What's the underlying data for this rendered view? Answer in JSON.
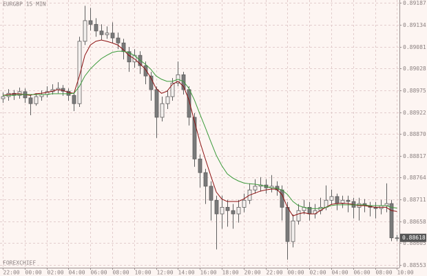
{
  "chart_data": {
    "type": "candlestick",
    "title": "EURGBP 15 MIN",
    "watermark": "FOREXCHIEF",
    "categories": [
      "22:00",
      null,
      null,
      null,
      "00:00",
      null,
      null,
      null,
      "02:00",
      null,
      null,
      null,
      "04:00",
      null,
      null,
      null,
      "06:00",
      null,
      null,
      null,
      "08:00",
      null,
      null,
      null,
      "10:00",
      null,
      null,
      null,
      "12:00",
      null,
      null,
      null,
      "14:00",
      null,
      null,
      null,
      "16:00",
      null,
      null,
      null,
      "18:00",
      null,
      null,
      null,
      "20:00",
      null,
      null,
      null,
      "22:00",
      null,
      null,
      null,
      "00:00",
      null,
      null,
      null,
      "02:00",
      null,
      null,
      null,
      "04:00",
      null,
      null,
      null,
      "06:00",
      null,
      null,
      null,
      "08:00",
      null,
      null,
      null,
      "10:00"
    ],
    "open": [
      0.88955,
      0.8896,
      0.88968,
      0.88963,
      0.88972,
      0.88957,
      0.88943,
      0.8896,
      0.88965,
      0.88972,
      0.88977,
      0.8898,
      0.88973,
      0.88963,
      0.88943,
      0.89094,
      0.89144,
      0.89135,
      0.89119,
      0.8911,
      0.89114,
      0.89102,
      0.8909,
      0.89069,
      0.89044,
      0.8906,
      0.89035,
      0.8901,
      0.88977,
      0.8891,
      0.88943,
      0.8896,
      0.88993,
      0.89013,
      0.88977,
      0.8891,
      0.88809,
      0.88776,
      0.88743,
      0.88709,
      0.88676,
      0.88692,
      0.88684,
      0.88676,
      0.88692,
      0.88709,
      0.88734,
      0.88743,
      0.88746,
      0.88739,
      0.88743,
      0.88734,
      0.88692,
      0.88609,
      0.88659,
      0.88684,
      0.88692,
      0.88676,
      0.88684,
      0.88692,
      0.88709,
      0.88718,
      0.88701,
      0.88709,
      0.88706,
      0.88692,
      0.88701,
      0.88696,
      0.88692,
      0.88689,
      0.88696,
      0.88701,
      0.88618
    ],
    "high": [
      0.8897,
      0.88978,
      0.88976,
      0.88982,
      0.8898,
      0.88965,
      0.88968,
      0.88975,
      0.88985,
      0.8899,
      0.88995,
      0.88988,
      0.8898,
      0.8897,
      0.89105,
      0.8918,
      0.89175,
      0.8915,
      0.89135,
      0.8913,
      0.8914,
      0.89115,
      0.891,
      0.8908,
      0.89075,
      0.8907,
      0.89045,
      0.8902,
      0.88985,
      0.8896,
      0.88975,
      0.89005,
      0.89045,
      0.8902,
      0.88985,
      0.8892,
      0.8882,
      0.88785,
      0.88755,
      0.8872,
      0.8872,
      0.8871,
      0.887,
      0.8871,
      0.88725,
      0.8875,
      0.8876,
      0.88765,
      0.8876,
      0.8877,
      0.88755,
      0.88745,
      0.88705,
      0.88675,
      0.887,
      0.8871,
      0.88705,
      0.887,
      0.88715,
      0.88745,
      0.88735,
      0.88725,
      0.8872,
      0.8872,
      0.88715,
      0.88715,
      0.88712,
      0.88705,
      0.88705,
      0.8871,
      0.8875,
      0.8871,
      0.88625
    ],
    "low": [
      0.88945,
      0.8895,
      0.88952,
      0.88955,
      0.88945,
      0.88915,
      0.88938,
      0.8895,
      0.88958,
      0.88965,
      0.88968,
      0.88962,
      0.8895,
      0.88925,
      0.88935,
      0.89085,
      0.8912,
      0.89105,
      0.89098,
      0.891,
      0.8909,
      0.89075,
      0.8905,
      0.8902,
      0.8903,
      0.89015,
      0.8899,
      0.8895,
      0.8886,
      0.889,
      0.8893,
      0.8895,
      0.88985,
      0.88965,
      0.8889,
      0.8879,
      0.8874,
      0.887,
      0.8866,
      0.8859,
      0.8864,
      0.88645,
      0.8864,
      0.88655,
      0.8868,
      0.887,
      0.88725,
      0.8873,
      0.88725,
      0.88728,
      0.8872,
      0.8866,
      0.88565,
      0.88595,
      0.8865,
      0.88675,
      0.8866,
      0.88665,
      0.88675,
      0.88685,
      0.887,
      0.88685,
      0.8869,
      0.8868,
      0.88665,
      0.8866,
      0.8868,
      0.8867,
      0.88665,
      0.88675,
      0.8868,
      0.8861,
      0.8861
    ],
    "close": [
      0.8896,
      0.88968,
      0.88963,
      0.88972,
      0.88957,
      0.88943,
      0.8896,
      0.88965,
      0.88972,
      0.88977,
      0.8898,
      0.88973,
      0.88963,
      0.88943,
      0.89094,
      0.89144,
      0.89135,
      0.89119,
      0.8911,
      0.89114,
      0.89102,
      0.8909,
      0.89069,
      0.89044,
      0.8906,
      0.89035,
      0.8901,
      0.88977,
      0.8891,
      0.88943,
      0.8896,
      0.88993,
      0.89013,
      0.88977,
      0.8891,
      0.88809,
      0.88776,
      0.88743,
      0.88709,
      0.88676,
      0.88692,
      0.88684,
      0.88676,
      0.88692,
      0.88709,
      0.88734,
      0.88743,
      0.88746,
      0.88739,
      0.88743,
      0.88734,
      0.88692,
      0.88609,
      0.88659,
      0.88684,
      0.88692,
      0.88676,
      0.88684,
      0.88692,
      0.88709,
      0.88718,
      0.88701,
      0.88709,
      0.88706,
      0.88692,
      0.88701,
      0.88696,
      0.88692,
      0.88689,
      0.88696,
      0.88701,
      0.88618,
      0.88618
    ],
    "up_color": "#f4f0ee",
    "down_color": "#7a7a7a",
    "wick_color": "#5e5e5e",
    "lines": [
      {
        "color": "#8b1010",
        "values": [
          0.88963,
          0.88965,
          0.88967,
          0.88967,
          0.88965,
          0.88963,
          0.88967,
          0.88968,
          0.8897,
          0.88973,
          0.88977,
          0.88975,
          0.8897,
          0.88968,
          0.8901,
          0.8906,
          0.89085,
          0.89094,
          0.89097,
          0.89094,
          0.8909,
          0.89085,
          0.89074,
          0.8906,
          0.89052,
          0.8904,
          0.89027,
          0.89007,
          0.8898,
          0.88968,
          0.88973,
          0.8899,
          0.88997,
          0.88985,
          0.88952,
          0.88901,
          0.88851,
          0.88809,
          0.88768,
          0.88729,
          0.88712,
          0.88706,
          0.88706,
          0.88706,
          0.88712,
          0.88721,
          0.88726,
          0.88731,
          0.88734,
          0.88736,
          0.88736,
          0.88723,
          0.88692,
          0.88671,
          0.88676,
          0.88679,
          0.88676,
          0.88676,
          0.88684,
          0.88692,
          0.88699,
          0.88701,
          0.88702,
          0.88701,
          0.88699,
          0.88696,
          0.88696,
          0.88694,
          0.88692,
          0.88692,
          0.88692,
          0.88684,
          0.88682
        ]
      },
      {
        "color": "#3a9a3a",
        "values": [
          0.88963,
          0.88963,
          0.88963,
          0.88965,
          0.88965,
          0.88965,
          0.88965,
          0.88965,
          0.88965,
          0.88967,
          0.88967,
          0.88967,
          0.88967,
          0.88968,
          0.88985,
          0.8901,
          0.89027,
          0.8904,
          0.89052,
          0.8906,
          0.89067,
          0.8907,
          0.8907,
          0.89067,
          0.8906,
          0.89049,
          0.89039,
          0.89027,
          0.8901,
          0.89002,
          0.88997,
          0.88997,
          0.89002,
          0.88997,
          0.8898,
          0.88952,
          0.88918,
          0.88885,
          0.88851,
          0.88818,
          0.88793,
          0.88773,
          0.88763,
          0.88756,
          0.88751,
          0.88749,
          0.88748,
          0.88746,
          0.88743,
          0.88739,
          0.88738,
          0.88734,
          0.88723,
          0.88706,
          0.88696,
          0.88692,
          0.88689,
          0.88689,
          0.88689,
          0.88692,
          0.88696,
          0.88698,
          0.88698,
          0.88698,
          0.88698,
          0.88698,
          0.88698,
          0.88696,
          0.88696,
          0.88696,
          0.88696,
          0.88692,
          0.8869
        ]
      }
    ],
    "ylim": [
      0.88549,
      0.89194
    ],
    "yticks": [
      0.89187,
      0.89134,
      0.89081,
      0.89028,
      0.88975,
      0.88922,
      {
        "value": 0.8887,
        "label": "0.88870"
      },
      0.88817,
      0.88764,
      0.88711,
      0.88658,
      0.88605,
      0.88553
    ],
    "grid": true
  }
}
